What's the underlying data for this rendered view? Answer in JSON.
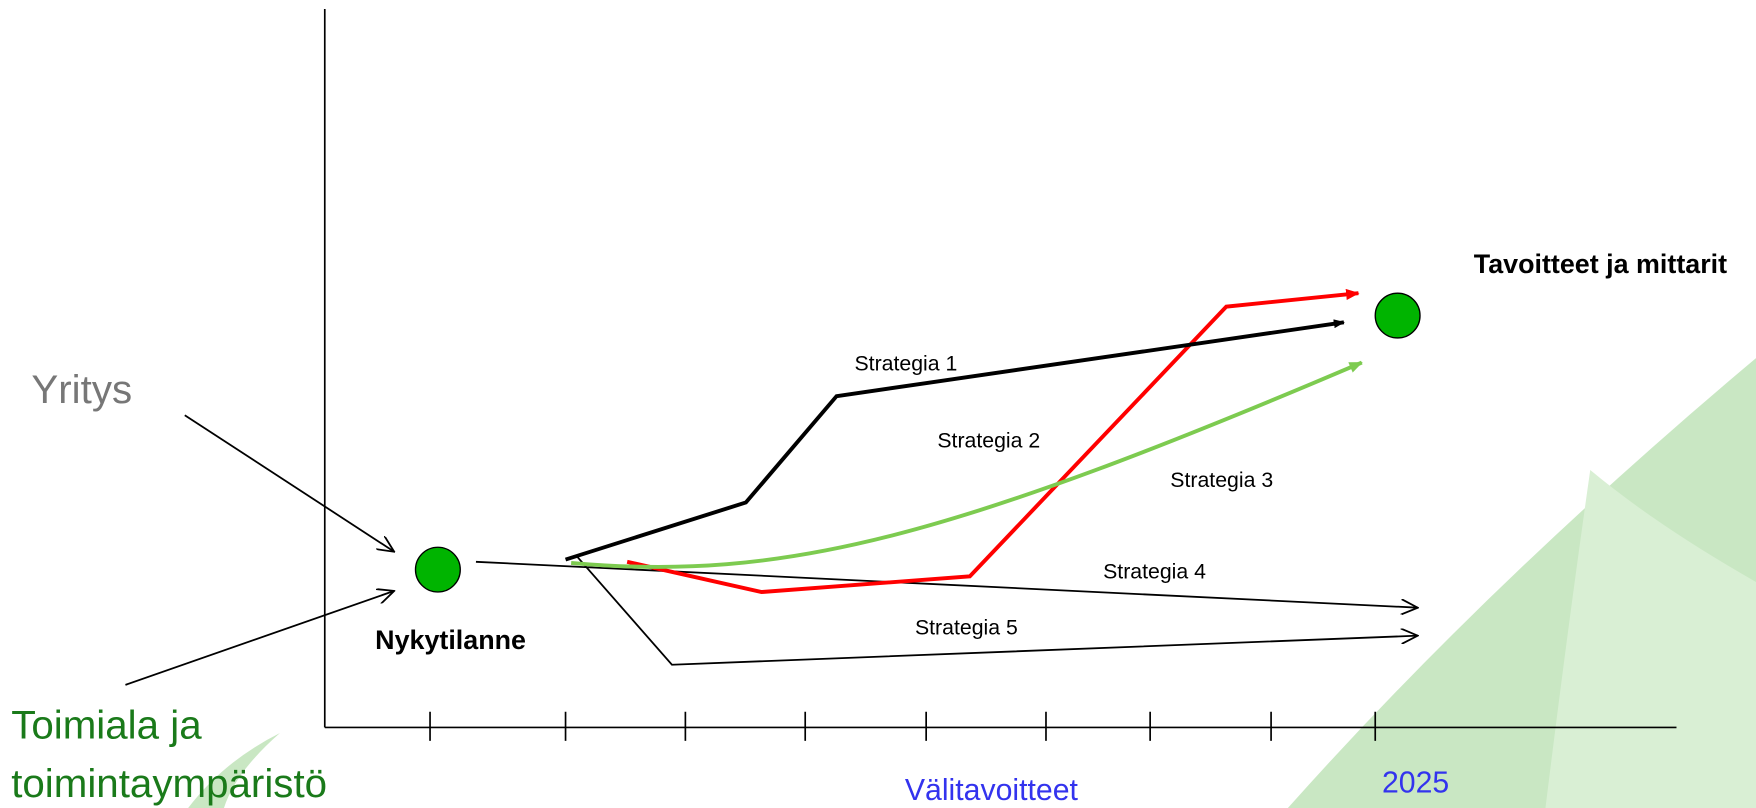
{
  "left_labels": {
    "company": "Yritys",
    "industry": [
      "Toimiala ja",
      "toimintaympäristö"
    ]
  },
  "start_label": "Nykytilanne",
  "goal_label": "Tavoitteet ja mittarit",
  "strategies": [
    "Strategia 1",
    "Strategia 2",
    "Strategia 3",
    "Strategia 4",
    "Strategia 5"
  ],
  "axis_labels": {
    "milestones": "Välitavoitteet",
    "year": "2025"
  }
}
